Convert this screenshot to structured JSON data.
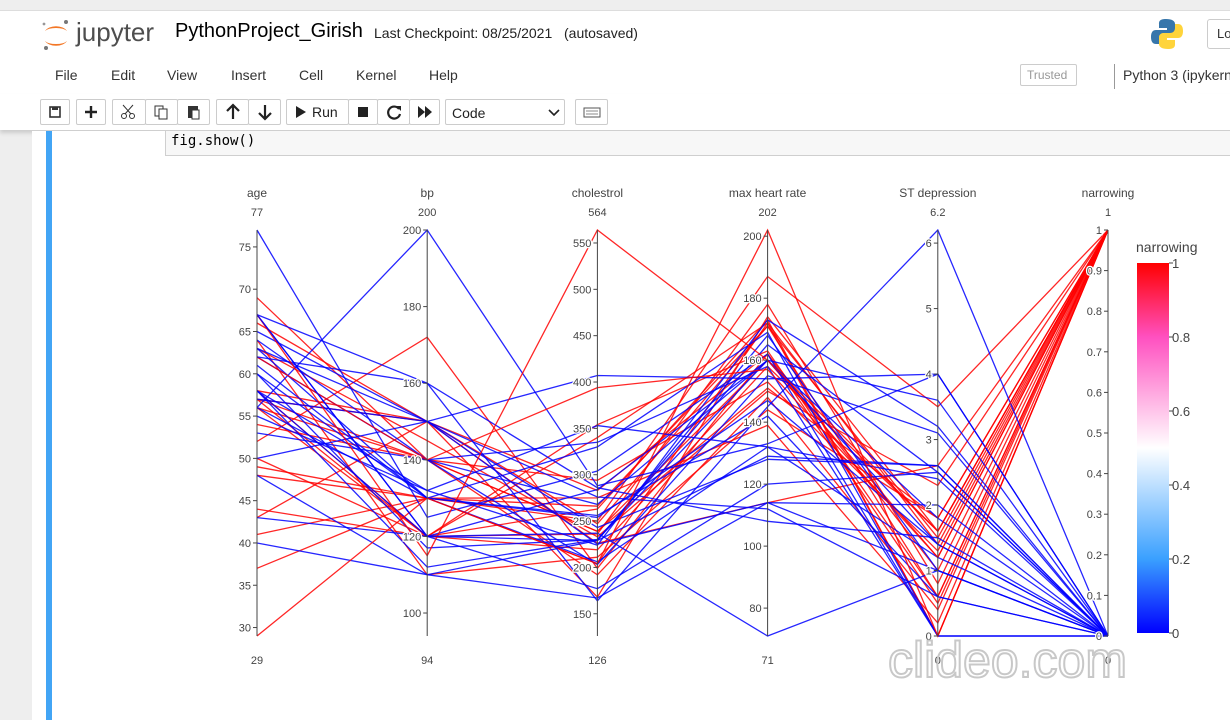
{
  "header": {
    "logo": "jupyter",
    "notebook_name": "PythonProject_Girish",
    "checkpoint": "Last Checkpoint: 08/25/2021",
    "autosaved": "(autosaved)",
    "login": "Lo"
  },
  "menu": [
    "File",
    "Edit",
    "View",
    "Insert",
    "Cell",
    "Kernel",
    "Help"
  ],
  "trusted": "Trusted",
  "kernel": "Python 3 (ipykern",
  "toolbar": {
    "run": "Run",
    "cell_type": "Code"
  },
  "cell": {
    "code": "fig.show()"
  },
  "chart_data": {
    "type": "parcoords",
    "dimensions": [
      {
        "label": "age",
        "range": [
          29,
          77
        ],
        "ticks": [
          30,
          35,
          40,
          45,
          50,
          55,
          60,
          65,
          70,
          75
        ],
        "values": [
          63,
          37,
          41,
          56,
          57,
          57,
          56,
          44,
          52,
          57,
          54,
          48,
          49,
          64,
          58,
          50,
          58,
          66,
          43,
          69,
          67,
          67,
          62,
          63,
          53,
          56,
          48,
          58,
          58,
          60,
          40,
          60,
          64,
          43,
          57,
          55,
          65,
          61,
          58,
          50,
          77,
          29,
          56,
          63,
          62,
          62,
          67,
          67
        ]
      },
      {
        "label": "bp",
        "range": [
          94,
          200
        ],
        "ticks": [
          100,
          120,
          140,
          160,
          180,
          200
        ],
        "values": [
          145,
          130,
          130,
          120,
          120,
          140,
          140,
          120,
          172,
          150,
          140,
          130,
          130,
          110,
          150,
          120,
          120,
          150,
          150,
          140,
          160,
          120,
          140,
          130,
          140,
          130,
          110,
          120,
          132,
          130,
          110,
          117,
          140,
          120,
          150,
          132,
          150,
          130,
          112,
          150,
          125,
          130,
          200,
          150,
          140,
          160,
          115,
          120
        ]
      },
      {
        "label": "cholestrol",
        "range": [
          126,
          564
        ],
        "ticks": [
          150,
          200,
          250,
          300,
          350,
          400,
          450,
          500,
          550
        ],
        "values": [
          233,
          250,
          204,
          236,
          354,
          192,
          294,
          263,
          199,
          168,
          239,
          275,
          266,
          211,
          283,
          219,
          340,
          226,
          247,
          239,
          286,
          229,
          268,
          254,
          203,
          256,
          229,
          284,
          224,
          206,
          167,
          230,
          335,
          177,
          276,
          353,
          225,
          330,
          230,
          243,
          304,
          204,
          288,
          407,
          394,
          164,
          564,
          237
        ]
      },
      {
        "label": "max heart rate",
        "range": [
          71,
          202
        ],
        "ticks": [
          80,
          100,
          120,
          140,
          160,
          180,
          200
        ],
        "values": [
          150,
          187,
          172,
          178,
          163,
          148,
          153,
          173,
          162,
          174,
          160,
          139,
          171,
          144,
          162,
          158,
          172,
          114,
          171,
          151,
          108,
          129,
          160,
          147,
          155,
          142,
          168,
          160,
          173,
          132,
          114,
          160,
          158,
          120,
          112,
          132,
          114,
          169,
          165,
          128,
          162,
          202,
          133,
          154,
          157,
          145,
          160,
          71
        ]
      },
      {
        "label": "ST depression",
        "range": [
          0,
          6.2
        ],
        "ticks": [
          0,
          1,
          2,
          3,
          4,
          5,
          6
        ],
        "values": [
          2.3,
          3.5,
          1.4,
          0.8,
          0.6,
          0.4,
          1.3,
          0,
          0.5,
          1.6,
          1.2,
          0.2,
          0.6,
          1.8,
          1,
          1.6,
          0,
          2.6,
          1.5,
          1.8,
          1.5,
          2.6,
          3.6,
          1.4,
          3.1,
          0.6,
          1,
          1.8,
          3.2,
          2.4,
          2,
          1.4,
          0,
          2.5,
          0.6,
          1.2,
          1,
          0,
          2.5,
          2.6,
          0,
          0,
          4,
          4,
          1.2,
          6.2,
          1.6,
          1
        ]
      },
      {
        "label": "narrowing",
        "range": [
          0,
          1
        ],
        "ticks": [
          0,
          0.1,
          0.2,
          0.3,
          0.4,
          0.5,
          0.6,
          0.7,
          0.8,
          0.9,
          1
        ],
        "values": [
          1,
          1,
          1,
          1,
          1,
          1,
          1,
          1,
          1,
          1,
          1,
          1,
          1,
          1,
          1,
          1,
          1,
          1,
          1,
          1,
          0,
          0,
          0,
          0,
          0,
          0,
          0,
          0,
          0,
          0,
          0,
          0,
          0,
          0,
          0,
          0,
          0,
          0,
          0,
          0,
          0,
          1,
          0,
          0,
          1,
          0,
          1,
          0
        ]
      }
    ],
    "color_dimension": 5,
    "colorscale": [
      [
        0,
        "#0000ff"
      ],
      [
        0.2,
        "#3aa0ff"
      ],
      [
        0.5,
        "#ffffff"
      ],
      [
        0.8,
        "#ff50c0"
      ],
      [
        1,
        "#ff0000"
      ]
    ],
    "colorbar": {
      "title": "narrowing",
      "ticks": [
        0,
        0.2,
        0.4,
        0.6,
        0.8,
        1
      ]
    }
  },
  "watermark": "clideo.com"
}
